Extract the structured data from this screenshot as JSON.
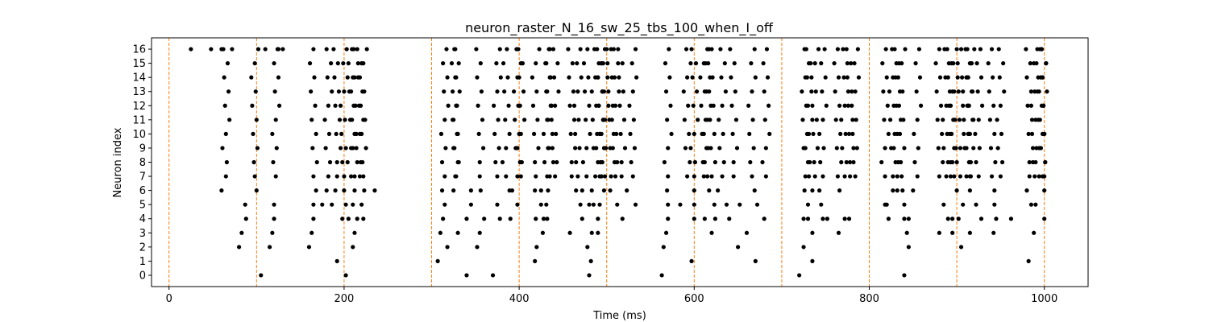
{
  "chart_data": {
    "type": "scatter",
    "title": "neuron_raster_N_16_sw_25_tbs_100_when_I_off",
    "xlabel": "Time (ms)",
    "ylabel": "Neuron index",
    "xlim": [
      -20,
      1050
    ],
    "ylim": [
      -0.8,
      16.8
    ],
    "xticks": [
      0,
      200,
      400,
      600,
      800,
      1000
    ],
    "yticks": [
      0,
      1,
      2,
      3,
      4,
      5,
      6,
      7,
      8,
      9,
      10,
      11,
      12,
      13,
      14,
      15,
      16
    ],
    "vlines": [
      0,
      100,
      200,
      300,
      400,
      500,
      600,
      700,
      800,
      900,
      1000
    ],
    "grid": false,
    "colors": {
      "spike": "#000000",
      "stimulus_line": "#ff7f0e",
      "axes": "#000000"
    },
    "spikes": [
      {
        "neuron": 0,
        "times": [
          105,
          202,
          340,
          370,
          480,
          563,
          720,
          840
        ]
      },
      {
        "neuron": 1,
        "times": [
          192,
          307,
          418,
          482,
          597,
          670,
          735,
          982
        ]
      },
      {
        "neuron": 2,
        "times": [
          80,
          115,
          160,
          210,
          318,
          352,
          420,
          478,
          565,
          650,
          725,
          845,
          905
        ]
      },
      {
        "neuron": 3,
        "times": [
          83,
          118,
          163,
          212,
          310,
          330,
          355,
          427,
          458,
          483,
          490,
          568,
          620,
          660,
          735,
          765,
          843,
          880,
          895,
          915,
          942,
          988
        ]
      },
      {
        "neuron": 4,
        "times": [
          88,
          120,
          165,
          198,
          205,
          215,
          222,
          313,
          340,
          360,
          378,
          390,
          419,
          428,
          432,
          472,
          490,
          518,
          570,
          600,
          612,
          624,
          640,
          680,
          725,
          730,
          747,
          752,
          772,
          777,
          822,
          840,
          845,
          890,
          895,
          902,
          928,
          945,
          962,
          1000
        ]
      },
      {
        "neuron": 5,
        "times": [
          87,
          120,
          165,
          175,
          186,
          202,
          210,
          220,
          315,
          345,
          375,
          398,
          425,
          431,
          470,
          480,
          485,
          492,
          512,
          533,
          570,
          584,
          600,
          623,
          637,
          652,
          672,
          730,
          745,
          818,
          820,
          840,
          885,
          907,
          922,
          943,
          985,
          990
        ]
      },
      {
        "neuron": 6,
        "times": [
          60,
          100,
          168,
          180,
          190,
          200,
          212,
          223,
          235,
          312,
          325,
          345,
          356,
          389,
          392,
          418,
          425,
          433,
          465,
          472,
          483,
          497,
          504,
          523,
          569,
          600,
          617,
          627,
          669,
          726,
          735,
          743,
          766,
          827,
          832,
          838,
          850,
          900,
          915,
          943,
          980,
          1000
        ]
      },
      {
        "neuron": 7,
        "times": [
          65,
          98,
          122,
          165,
          182,
          192,
          200,
          208,
          212,
          218,
          222,
          315,
          327,
          328,
          355,
          375,
          385,
          398,
          402,
          419,
          432,
          435,
          441,
          460,
          467,
          477,
          487,
          492,
          494,
          498,
          505,
          510,
          517,
          530,
          570,
          592,
          600,
          611,
          615,
          620,
          632,
          645,
          666,
          682,
          727,
          731,
          738,
          747,
          764,
          772,
          778,
          784,
          818,
          827,
          832,
          837,
          855,
          880,
          888,
          893,
          897,
          904,
          911,
          915,
          916,
          925,
          940,
          950,
          983,
          989,
          994,
          998,
          1000
        ]
      }
    ]
  }
}
